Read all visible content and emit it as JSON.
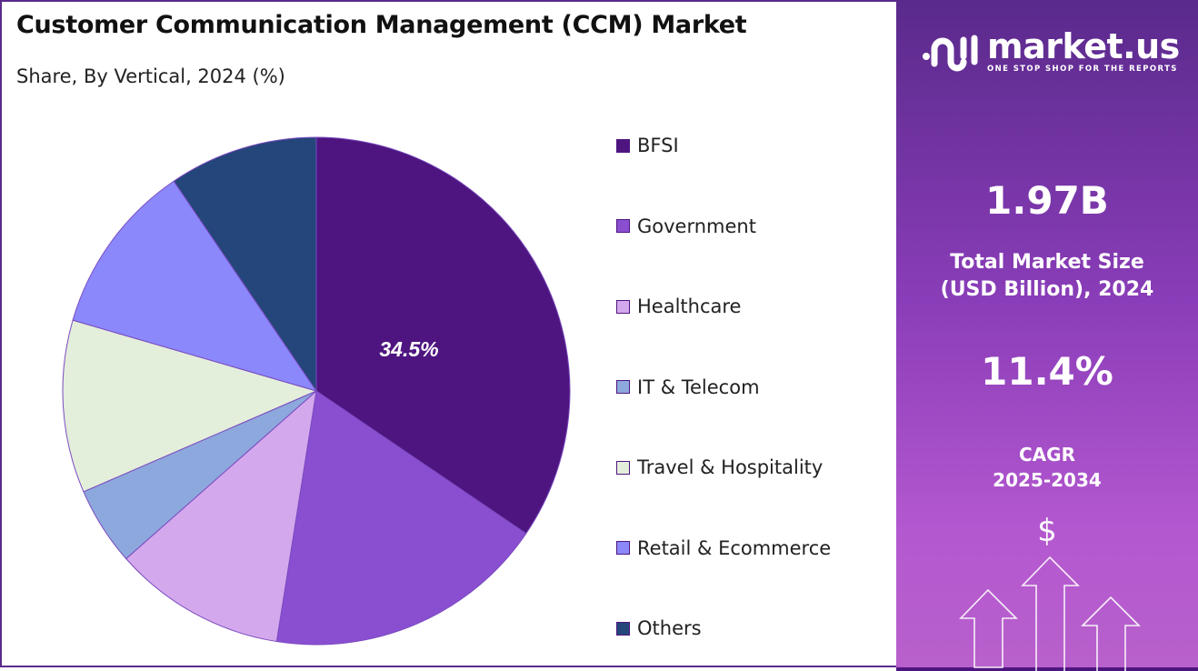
{
  "chart_data": {
    "type": "pie",
    "title": "Customer Communication Management (CCM) Market",
    "subtitle": "Share, By Vertical, 2024 (%)",
    "categories": [
      "BFSI",
      "Government",
      "Healthcare",
      "IT & Telecom",
      "Travel & Hospitality",
      "Retail & Ecommerce",
      "Others"
    ],
    "values": [
      34.5,
      18.0,
      11.0,
      5.0,
      11.0,
      11.0,
      9.5
    ],
    "colors": [
      "#4e1580",
      "#8a4fd0",
      "#d4a8ec",
      "#8da8dc",
      "#e3eedb",
      "#8b88fc",
      "#24467a"
    ],
    "data_labels": [
      "34.5%"
    ],
    "legend_position": "right"
  },
  "brand": {
    "name": "market.us",
    "tagline": "ONE STOP SHOP FOR THE REPORTS"
  },
  "stats": {
    "market_size": "1.97B",
    "market_size_label_1": "Total Market Size",
    "market_size_label_2": "(USD Billion), 2024",
    "cagr": "11.4%",
    "cagr_label_1": "CAGR",
    "cagr_label_2": "2025-2034",
    "dollar": "$"
  }
}
